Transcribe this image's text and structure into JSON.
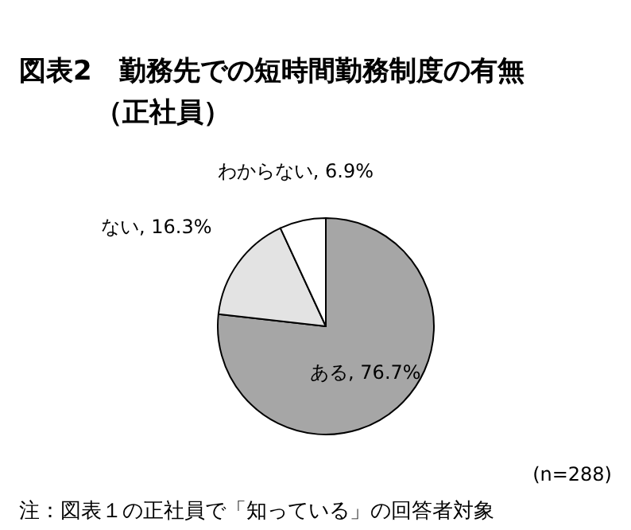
{
  "chart_data": {
    "type": "pie",
    "title": "図表2　勤務先での短時間勤務制度の有無",
    "subtitle": "（正社員）",
    "categories": [
      "ある",
      "ない",
      "わからない"
    ],
    "value_labels": [
      "76.7%",
      "16.3%",
      "6.9%"
    ],
    "values": [
      76.7,
      16.3,
      6.9
    ],
    "colors": [
      "#a6a6a6",
      "#e3e3e3",
      "#ffffff"
    ],
    "annotations": [
      "(n=288)",
      "注：図表１の正社員で「知っている」の回答者対象"
    ]
  }
}
